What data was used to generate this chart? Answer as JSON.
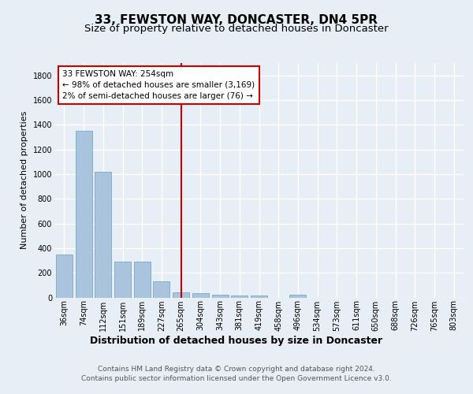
{
  "title1": "33, FEWSTON WAY, DONCASTER, DN4 5PR",
  "title2": "Size of property relative to detached houses in Doncaster",
  "xlabel": "Distribution of detached houses by size in Doncaster",
  "ylabel": "Number of detached properties",
  "footer1": "Contains HM Land Registry data © Crown copyright and database right 2024.",
  "footer2": "Contains public sector information licensed under the Open Government Licence v3.0.",
  "annotation_line1": "33 FEWSTON WAY: 254sqm",
  "annotation_line2": "← 98% of detached houses are smaller (3,169)",
  "annotation_line3": "2% of semi-detached houses are larger (76) →",
  "bar_labels": [
    "36sqm",
    "74sqm",
    "112sqm",
    "151sqm",
    "189sqm",
    "227sqm",
    "265sqm",
    "304sqm",
    "343sqm",
    "381sqm",
    "419sqm",
    "458sqm",
    "496sqm",
    "534sqm",
    "573sqm",
    "611sqm",
    "650sqm",
    "688sqm",
    "726sqm",
    "765sqm",
    "803sqm"
  ],
  "bar_values": [
    350,
    1350,
    1020,
    290,
    290,
    130,
    40,
    35,
    25,
    15,
    15,
    0,
    20,
    0,
    0,
    0,
    0,
    0,
    0,
    0,
    0
  ],
  "bar_color": "#aac4de",
  "bar_edge_color": "#6a9ec0",
  "red_line_index": 6,
  "ylim": [
    0,
    1900
  ],
  "yticks": [
    0,
    200,
    400,
    600,
    800,
    1000,
    1200,
    1400,
    1600,
    1800
  ],
  "bg_color": "#e8eef5",
  "plot_bg_color": "#e8eef5",
  "grid_color": "#ffffff",
  "red_line_color": "#cc0000",
  "annotation_box_color": "#ffffff",
  "annotation_border_color": "#cc0000",
  "title1_fontsize": 11,
  "title2_fontsize": 9.5,
  "xlabel_fontsize": 9,
  "ylabel_fontsize": 8,
  "tick_fontsize": 7,
  "annotation_fontsize": 7.5,
  "footer_fontsize": 6.5
}
